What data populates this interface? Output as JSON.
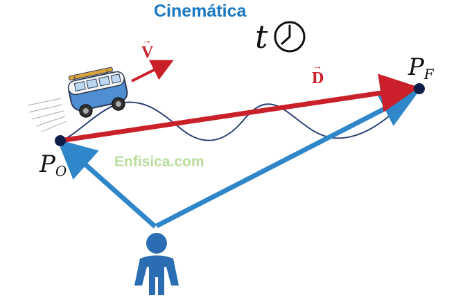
{
  "title": "Cinemática",
  "watermark": "Enfisica.com",
  "time_symbol": "t",
  "velocity_label": "V",
  "displacement_label": "D",
  "vector_arrow": "→",
  "points": {
    "origin": {
      "letter": "P",
      "sub": "O"
    },
    "final": {
      "letter": "P",
      "sub": "F"
    }
  },
  "colors": {
    "title": "#1a78c2",
    "displacement": "#c9202a",
    "position_vectors": "#2f86c9",
    "trajectory": "#2b3f74",
    "points": "#0f1f4a",
    "observer": "#2a6db3",
    "watermark": "#b8dc9a"
  },
  "icons": [
    "clock-icon",
    "van-icon",
    "observer-person-icon"
  ]
}
